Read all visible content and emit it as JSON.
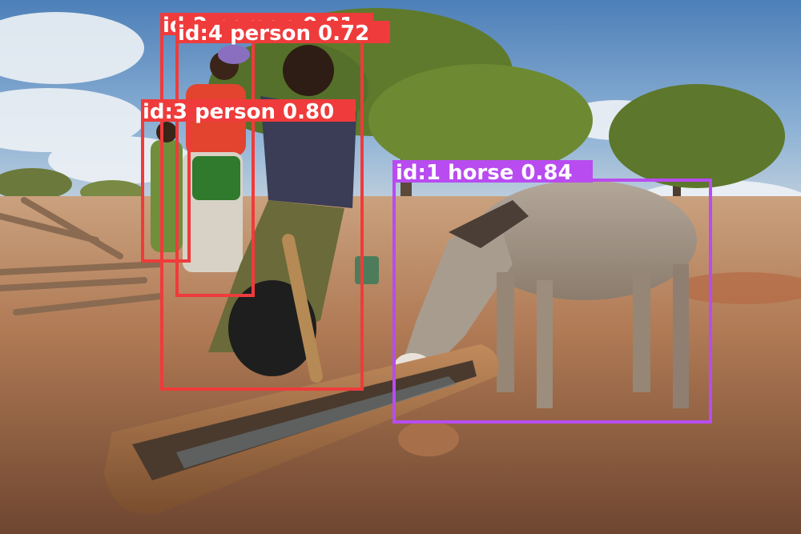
{
  "image": {
    "description_free": true
  },
  "detections": [
    {
      "id": "id:1",
      "class": "horse",
      "score": "0.84",
      "label": "id:1 horse 0.84",
      "color": "#b84cf0"
    },
    {
      "id": "id:2",
      "class": "person",
      "score": "0.81",
      "label": "id:2 person 0.81",
      "color": "#ef3b3b"
    },
    {
      "id": "id:3",
      "class": "person",
      "score": "0.80",
      "label": "id:3 person 0.80",
      "color": "#ef3b3b"
    },
    {
      "id": "id:4",
      "class": "person",
      "score": "0.72",
      "label": "id:4 person 0.72",
      "color": "#ef3b3b"
    }
  ]
}
